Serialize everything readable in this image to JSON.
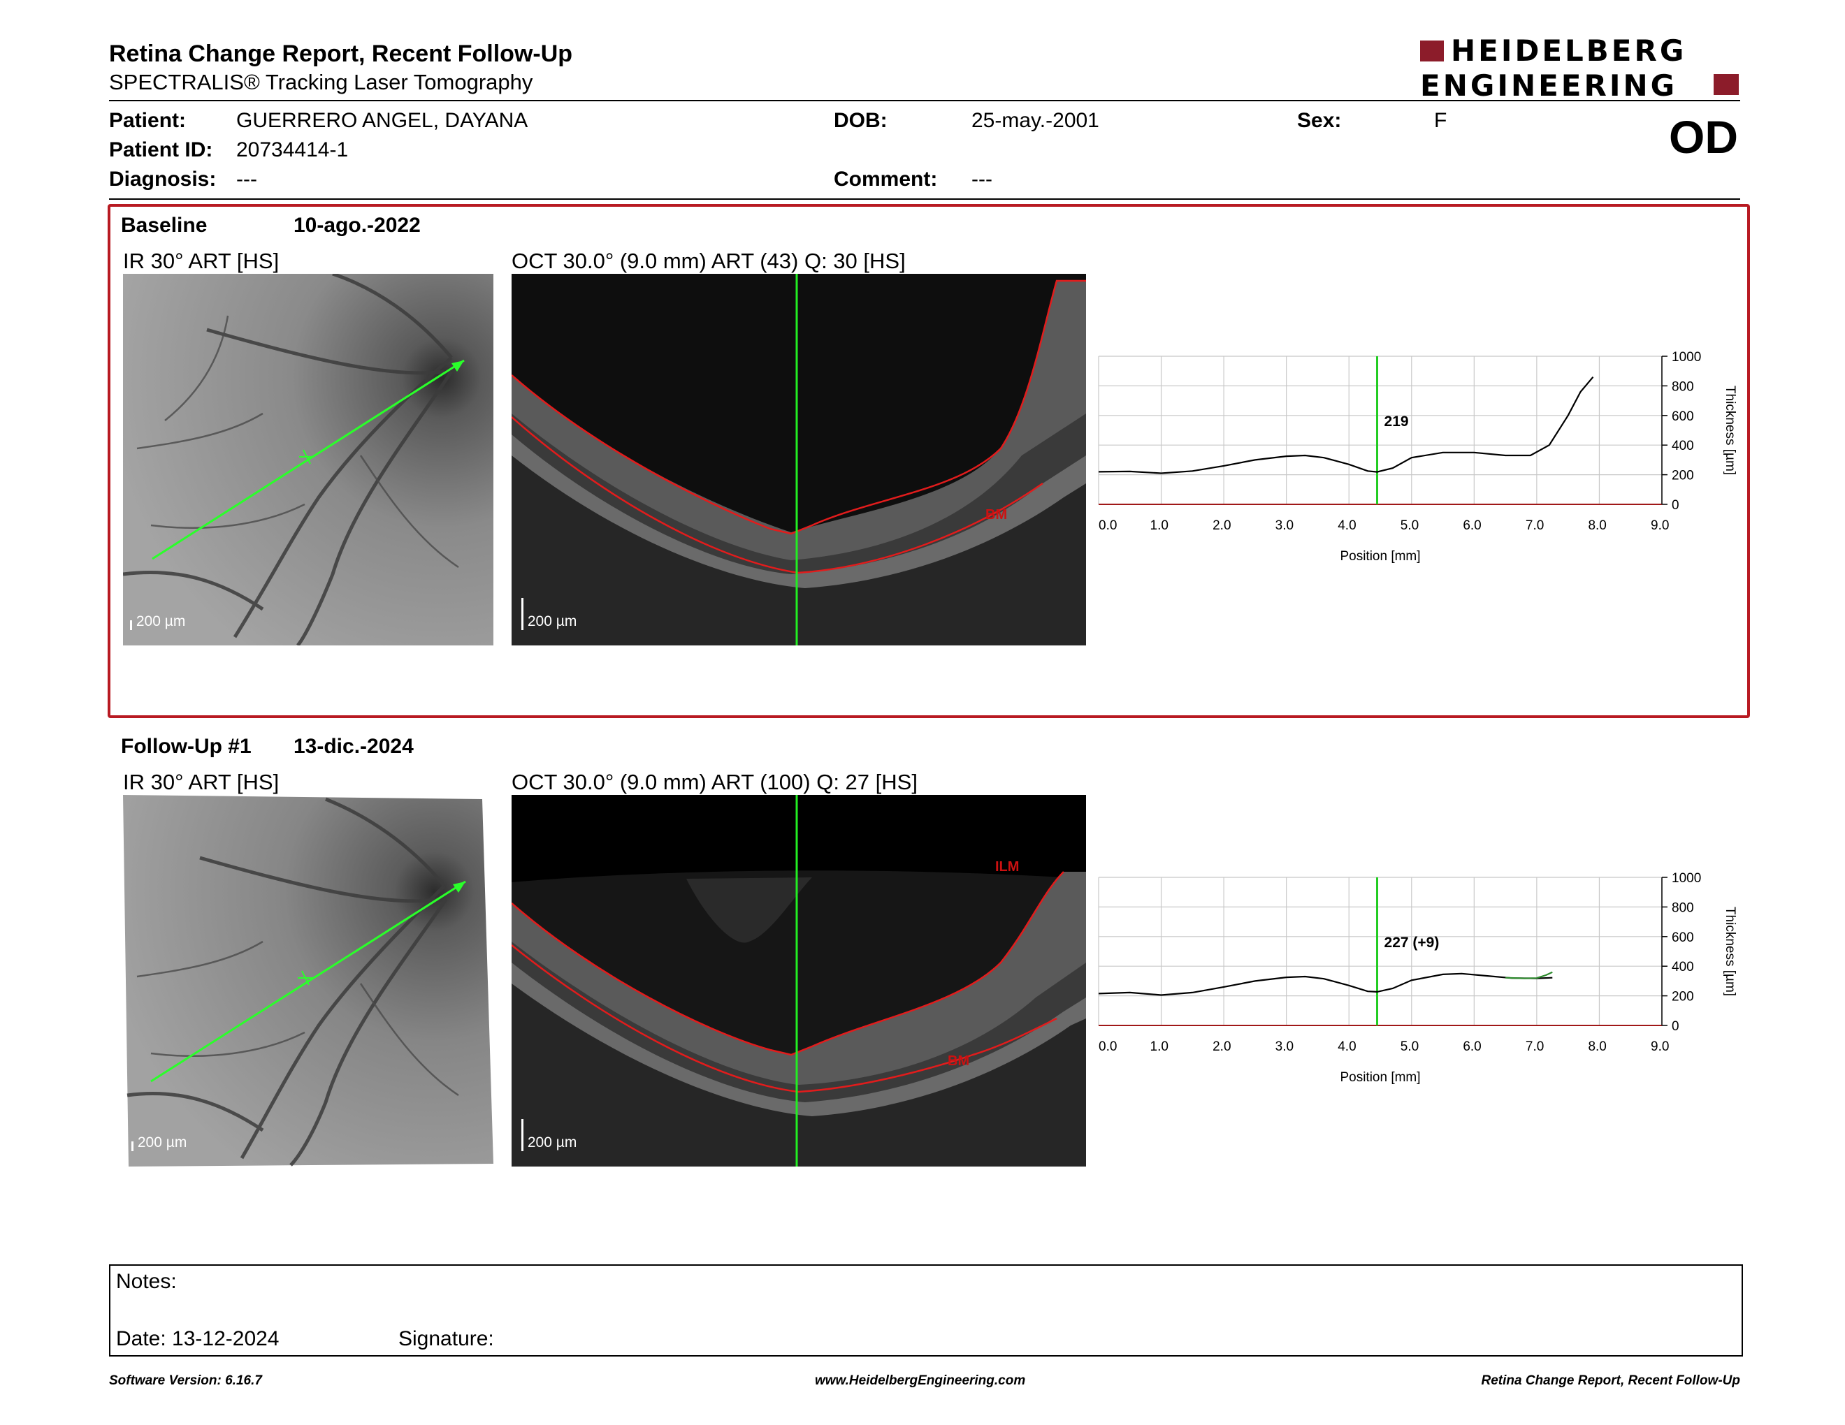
{
  "header": {
    "title": "Retina Change Report, Recent Follow-Up",
    "subtitle": "SPECTRALIS® Tracking Laser Tomography",
    "logo_line1": "HEIDELBERG",
    "logo_line2": "ENGINEERING",
    "eye": "OD"
  },
  "patient": {
    "patient_label": "Patient:",
    "patient_value": "GUERRERO ANGEL, DAYANA",
    "id_label": "Patient ID:",
    "id_value": "20734414-1",
    "diagnosis_label": "Diagnosis:",
    "diagnosis_value": "---",
    "dob_label": "DOB:",
    "dob_value": "25-may.-2001",
    "comment_label": "Comment:",
    "comment_value": "---",
    "sex_label": "Sex:",
    "sex_value": "F"
  },
  "baseline": {
    "label": "Baseline",
    "date": "10-ago.-2022",
    "ir_title": "IR 30° ART [HS]",
    "oct_title": "OCT 30.0° (9.0 mm) ART (43) Q: 30 [HS]",
    "scale_label": "200 µm",
    "layer_labels": [
      "BM"
    ]
  },
  "followup": {
    "label": "Follow-Up #1",
    "date": "13-dic.-2024",
    "ir_title": "IR 30° ART [HS]",
    "oct_title": "OCT 30.0° (9.0 mm) ART (100) Q: 27 [HS]",
    "scale_label": "200 µm",
    "layer_labels": [
      "ILM",
      "BM"
    ]
  },
  "chart_data": [
    {
      "type": "line",
      "xlabel": "Position [mm]",
      "ylabel": "Thickness [µm]",
      "xlim": [
        0,
        9
      ],
      "ylim": [
        0,
        1000
      ],
      "xticks": [
        "0.0",
        "1.0",
        "2.0",
        "3.0",
        "4.0",
        "5.0",
        "6.0",
        "7.0",
        "8.0",
        "9.0"
      ],
      "yticks": [
        "0",
        "200",
        "400",
        "600",
        "800",
        "1000"
      ],
      "grid": true,
      "marker_x": 4.45,
      "marker_label": "219",
      "series": [
        {
          "x": [
            0,
            0.5,
            1.0,
            1.5,
            2.0,
            2.5,
            3.0,
            3.3,
            3.6,
            4.0,
            4.3,
            4.45,
            4.7,
            5.0,
            5.5,
            6.0,
            6.5,
            6.9,
            7.2,
            7.5,
            7.7,
            7.9
          ],
          "y": [
            220,
            222,
            210,
            225,
            260,
            300,
            325,
            330,
            315,
            270,
            225,
            219,
            245,
            315,
            350,
            350,
            330,
            330,
            400,
            600,
            760,
            860
          ],
          "color": "#000000"
        }
      ]
    },
    {
      "type": "line",
      "xlabel": "Position [mm]",
      "ylabel": "Thickness [µm]",
      "xlim": [
        0,
        9
      ],
      "ylim": [
        0,
        1000
      ],
      "xticks": [
        "0.0",
        "1.0",
        "2.0",
        "3.0",
        "4.0",
        "5.0",
        "6.0",
        "7.0",
        "8.0",
        "9.0"
      ],
      "yticks": [
        "0",
        "200",
        "400",
        "600",
        "800",
        "1000"
      ],
      "grid": true,
      "marker_x": 4.45,
      "marker_label": "227 (+9)",
      "series": [
        {
          "x": [
            0,
            0.5,
            1.0,
            1.5,
            2.0,
            2.5,
            3.0,
            3.3,
            3.6,
            4.0,
            4.3,
            4.45,
            4.7,
            5.0,
            5.5,
            5.8,
            6.2,
            6.6,
            7.0,
            7.25
          ],
          "y": [
            215,
            222,
            205,
            222,
            260,
            300,
            325,
            330,
            315,
            270,
            230,
            227,
            250,
            305,
            345,
            350,
            335,
            320,
            318,
            322
          ],
          "color": "#000000"
        },
        {
          "x": [
            6.5,
            6.8,
            7.0,
            7.15,
            7.25
          ],
          "y": [
            322,
            318,
            320,
            340,
            360
          ],
          "color": "#2e8b2e"
        }
      ]
    }
  ],
  "notes": {
    "notes_label": "Notes:",
    "date_label": "Date: 13-12-2024",
    "signature_label": "Signature:"
  },
  "footer": {
    "software": "Software Version: 6.16.7",
    "url": "www.HeidelbergEngineering.com",
    "report": "Retina Change Report, Recent Follow-Up"
  }
}
